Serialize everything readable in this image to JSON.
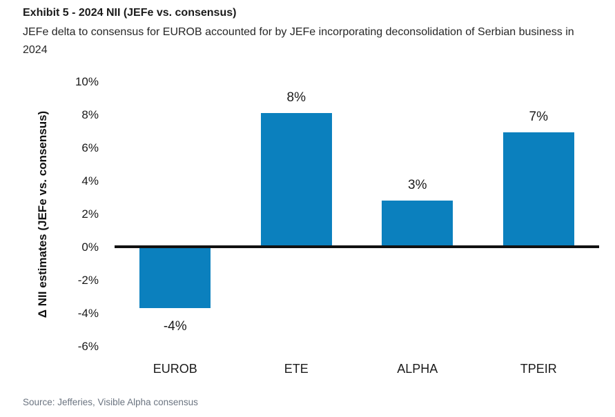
{
  "chart_data": {
    "type": "bar",
    "title": "Exhibit 5 - 2024 NII (JEFe vs. consensus)",
    "subtitle": "JEFe delta to consensus for EUROB accounted for by JEFe incorporating deconsolidation of Serbian business in 2024",
    "ylabel": "Δ NII estimates (JEFe vs. consensus)",
    "categories": [
      "EUROB",
      "ETE",
      "ALPHA",
      "TPEIR"
    ],
    "values": [
      -3.7,
      8.1,
      2.8,
      6.9
    ],
    "value_labels": [
      "-4%",
      "8%",
      "3%",
      "7%"
    ],
    "yticks": [
      10,
      8,
      6,
      4,
      2,
      0,
      -2,
      -4,
      -6
    ],
    "ytick_labels": [
      "10%",
      "8%",
      "6%",
      "4%",
      "2%",
      "0%",
      "-2%",
      "-4%",
      "-6%"
    ],
    "ylim": [
      -6,
      10
    ],
    "grid": false,
    "legend": "none",
    "bar_color": "#0B80BE",
    "axis_line_color": "#111111",
    "source": "Source: Jefferies, Visible Alpha consensus"
  }
}
